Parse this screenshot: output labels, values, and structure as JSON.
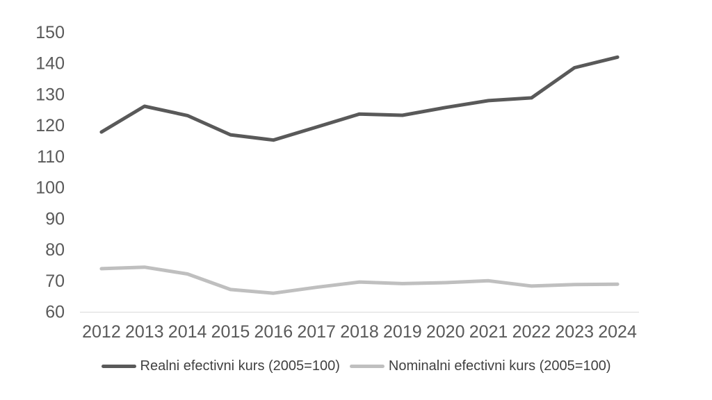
{
  "chart_data": {
    "type": "line",
    "title": "",
    "xlabel": "",
    "ylabel": "",
    "categories": [
      "2012",
      "2013",
      "2014",
      "2015",
      "2016",
      "2017",
      "2018",
      "2019",
      "2020",
      "2021",
      "2022",
      "2023",
      "2024"
    ],
    "series": [
      {
        "name": "Realni efectivni kurs (2005=100)",
        "color": "#595959",
        "values": [
          118.0,
          126.3,
          123.3,
          117.1,
          115.4,
          119.6,
          123.8,
          123.4,
          125.9,
          128.1,
          129.0,
          138.7,
          142.1
        ]
      },
      {
        "name": "Nominalni efectivni kurs (2005=100)",
        "color": "#BFBFBF",
        "values": [
          74.0,
          74.5,
          72.3,
          67.3,
          66.1,
          68.0,
          69.7,
          69.2,
          69.5,
          70.1,
          68.4,
          68.9,
          69.0
        ]
      }
    ],
    "ylim": [
      60,
      150
    ],
    "yticks": [
      60,
      70,
      80,
      90,
      100,
      110,
      120,
      130,
      140,
      150
    ],
    "grid": false,
    "legend_position": "bottom",
    "colors": {
      "axis_line": "#D9D9D9",
      "tick_label": "#595959",
      "legend_text": "#404040",
      "background": "#FFFFFF"
    }
  },
  "legend": {
    "items": [
      {
        "label": "Realni efectivni kurs (2005=100)"
      },
      {
        "label": "Nominalni efectivni kurs (2005=100)"
      }
    ]
  }
}
